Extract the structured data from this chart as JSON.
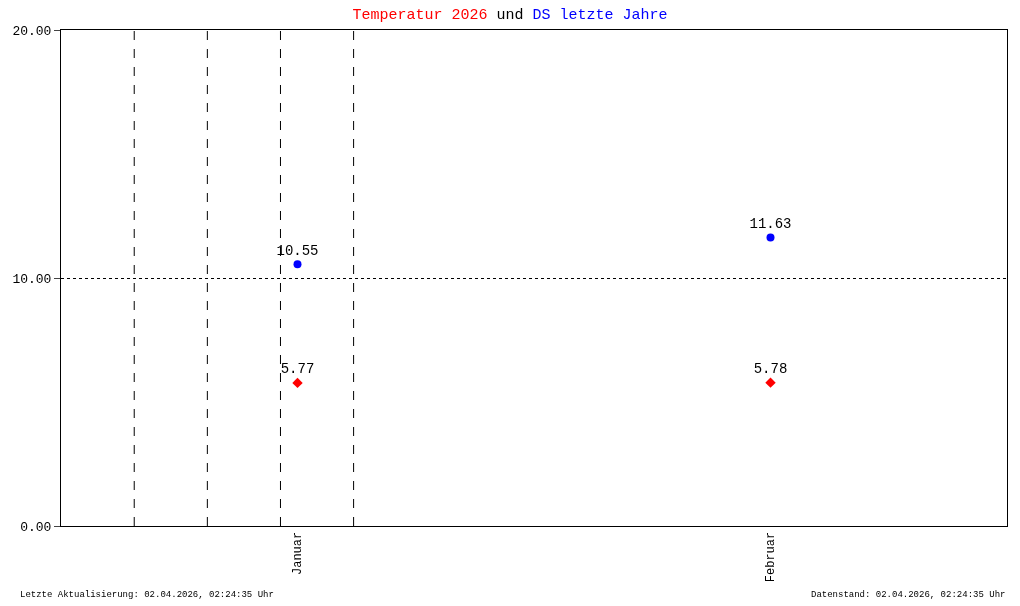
{
  "chart_data": {
    "type": "scatter",
    "title": "Temperatur 2026 und DS letzte Jahre",
    "categories": [
      "Januar",
      "Februar"
    ],
    "series": [
      {
        "color": "#ff0000",
        "values": [
          5.77,
          5.78
        ],
        "marker": "diamond"
      },
      {
        "color": "#0000ff",
        "values": [
          10.55,
          11.63
        ],
        "marker": "circle"
      }
    ],
    "ylim": [
      0,
      20
    ],
    "yticks": [
      {
        "value": 0,
        "label": "0.00"
      },
      {
        "value": 10,
        "label": "10.00"
      },
      {
        "value": 20,
        "label": "20.00"
      }
    ],
    "grid": "y",
    "legend": false,
    "data_labels": true,
    "annotations": [
      "Letzte Aktualisierung: 02.04.2026, 02:24:35 Uhr",
      "Datenstand: 02.04.2026, 02:24:35 Uhr"
    ]
  }
}
